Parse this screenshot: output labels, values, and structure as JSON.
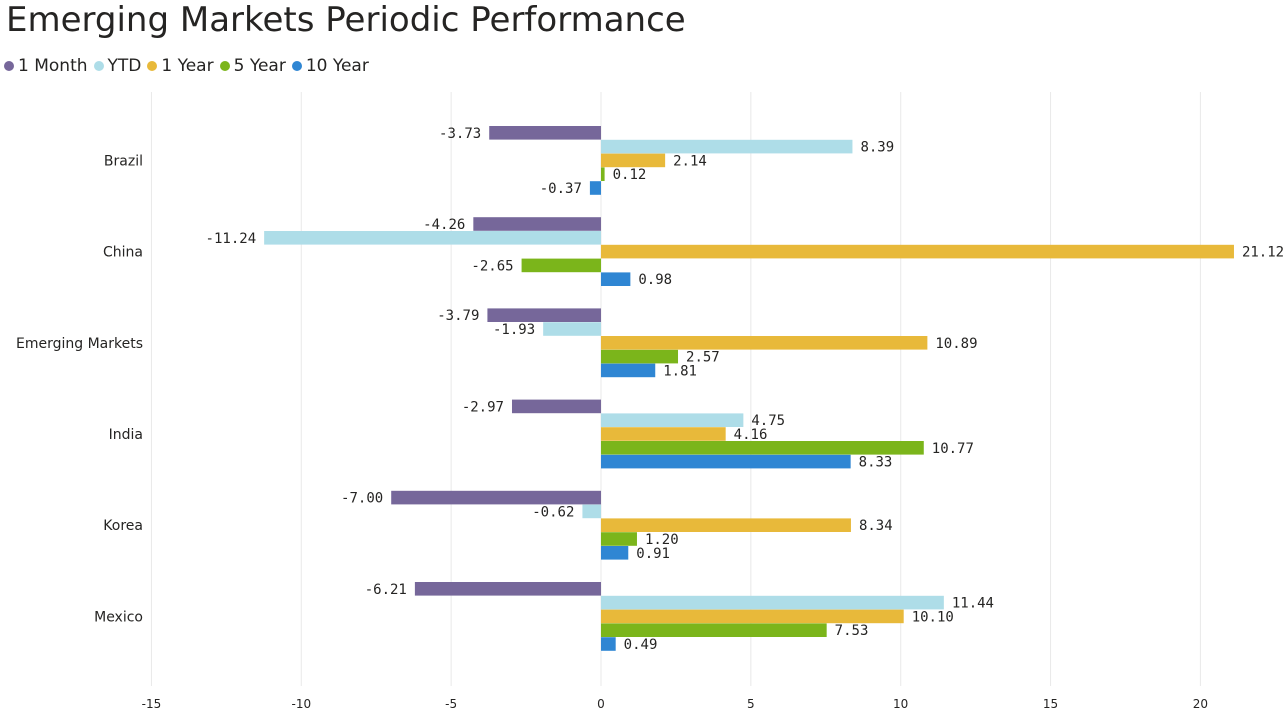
{
  "title": "Emerging Markets Periodic Performance",
  "chart_data": {
    "type": "bar",
    "orientation": "horizontal",
    "title": "Emerging Markets Periodic Performance",
    "categories": [
      "Brazil",
      "China",
      "Emerging Markets",
      "India",
      "Korea",
      "Mexico"
    ],
    "series": [
      {
        "name": "1 Month",
        "color": "#76679a",
        "values": [
          -3.73,
          -4.26,
          -3.79,
          -2.97,
          -7.0,
          -6.21
        ]
      },
      {
        "name": "YTD",
        "color": "#aedde8",
        "values": [
          8.39,
          -11.24,
          -1.93,
          4.75,
          -0.62,
          11.44
        ]
      },
      {
        "name": "1 Year",
        "color": "#e8b93a",
        "values": [
          2.14,
          21.12,
          10.89,
          4.16,
          8.34,
          10.1
        ]
      },
      {
        "name": "5 Year",
        "color": "#7bb51b",
        "values": [
          0.12,
          -2.65,
          2.57,
          10.77,
          1.2,
          7.53
        ]
      },
      {
        "name": "10 Year",
        "color": "#2f86d3",
        "values": [
          -0.37,
          0.98,
          1.81,
          8.33,
          0.91,
          0.49
        ]
      }
    ],
    "xlim": [
      -15,
      22
    ],
    "xticks": [
      -15,
      -10,
      -5,
      0,
      5,
      10,
      15,
      20
    ],
    "legend_position": "top-left",
    "grid": true,
    "data_labels": true
  }
}
